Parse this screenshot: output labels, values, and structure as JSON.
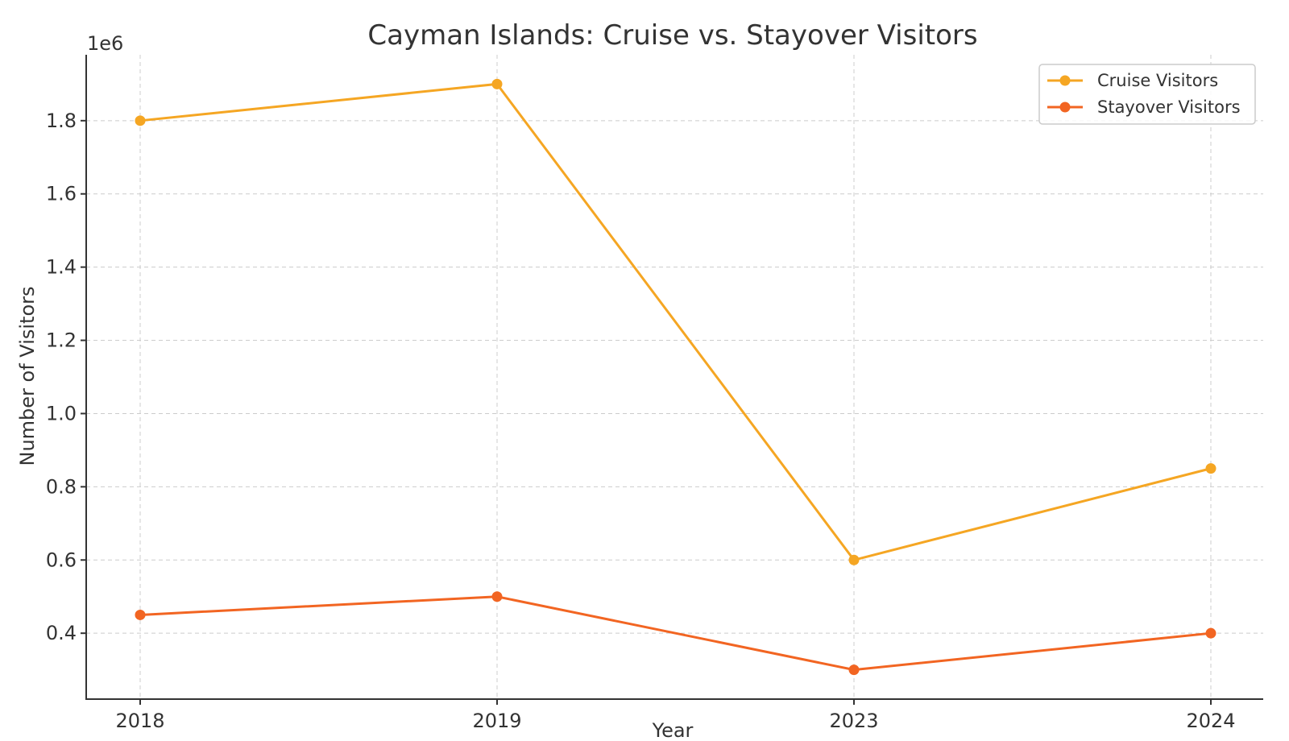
{
  "chart_data": {
    "type": "line",
    "title": "Cayman Islands: Cruise vs. Stayover Visitors",
    "xlabel": "Year",
    "ylabel": "Number of Visitors",
    "y_offset_label": "1e6",
    "categories": [
      "2018",
      "2019",
      "2023",
      "2024"
    ],
    "series": [
      {
        "name": "Cruise Visitors",
        "color": "#f5a623",
        "values": [
          1800000,
          1900000,
          600000,
          850000
        ]
      },
      {
        "name": "Stayover Visitors",
        "color": "#f26522",
        "values": [
          450000,
          500000,
          300000,
          400000
        ]
      }
    ],
    "yticks": [
      "0.4",
      "0.6",
      "0.8",
      "1.0",
      "1.2",
      "1.4",
      "1.6",
      "1.8"
    ],
    "ytick_values": [
      400000,
      600000,
      800000,
      1000000,
      1200000,
      1400000,
      1600000,
      1800000
    ],
    "ylim": [
      220000,
      1980000
    ],
    "grid": true,
    "legend_position": "top-right"
  }
}
